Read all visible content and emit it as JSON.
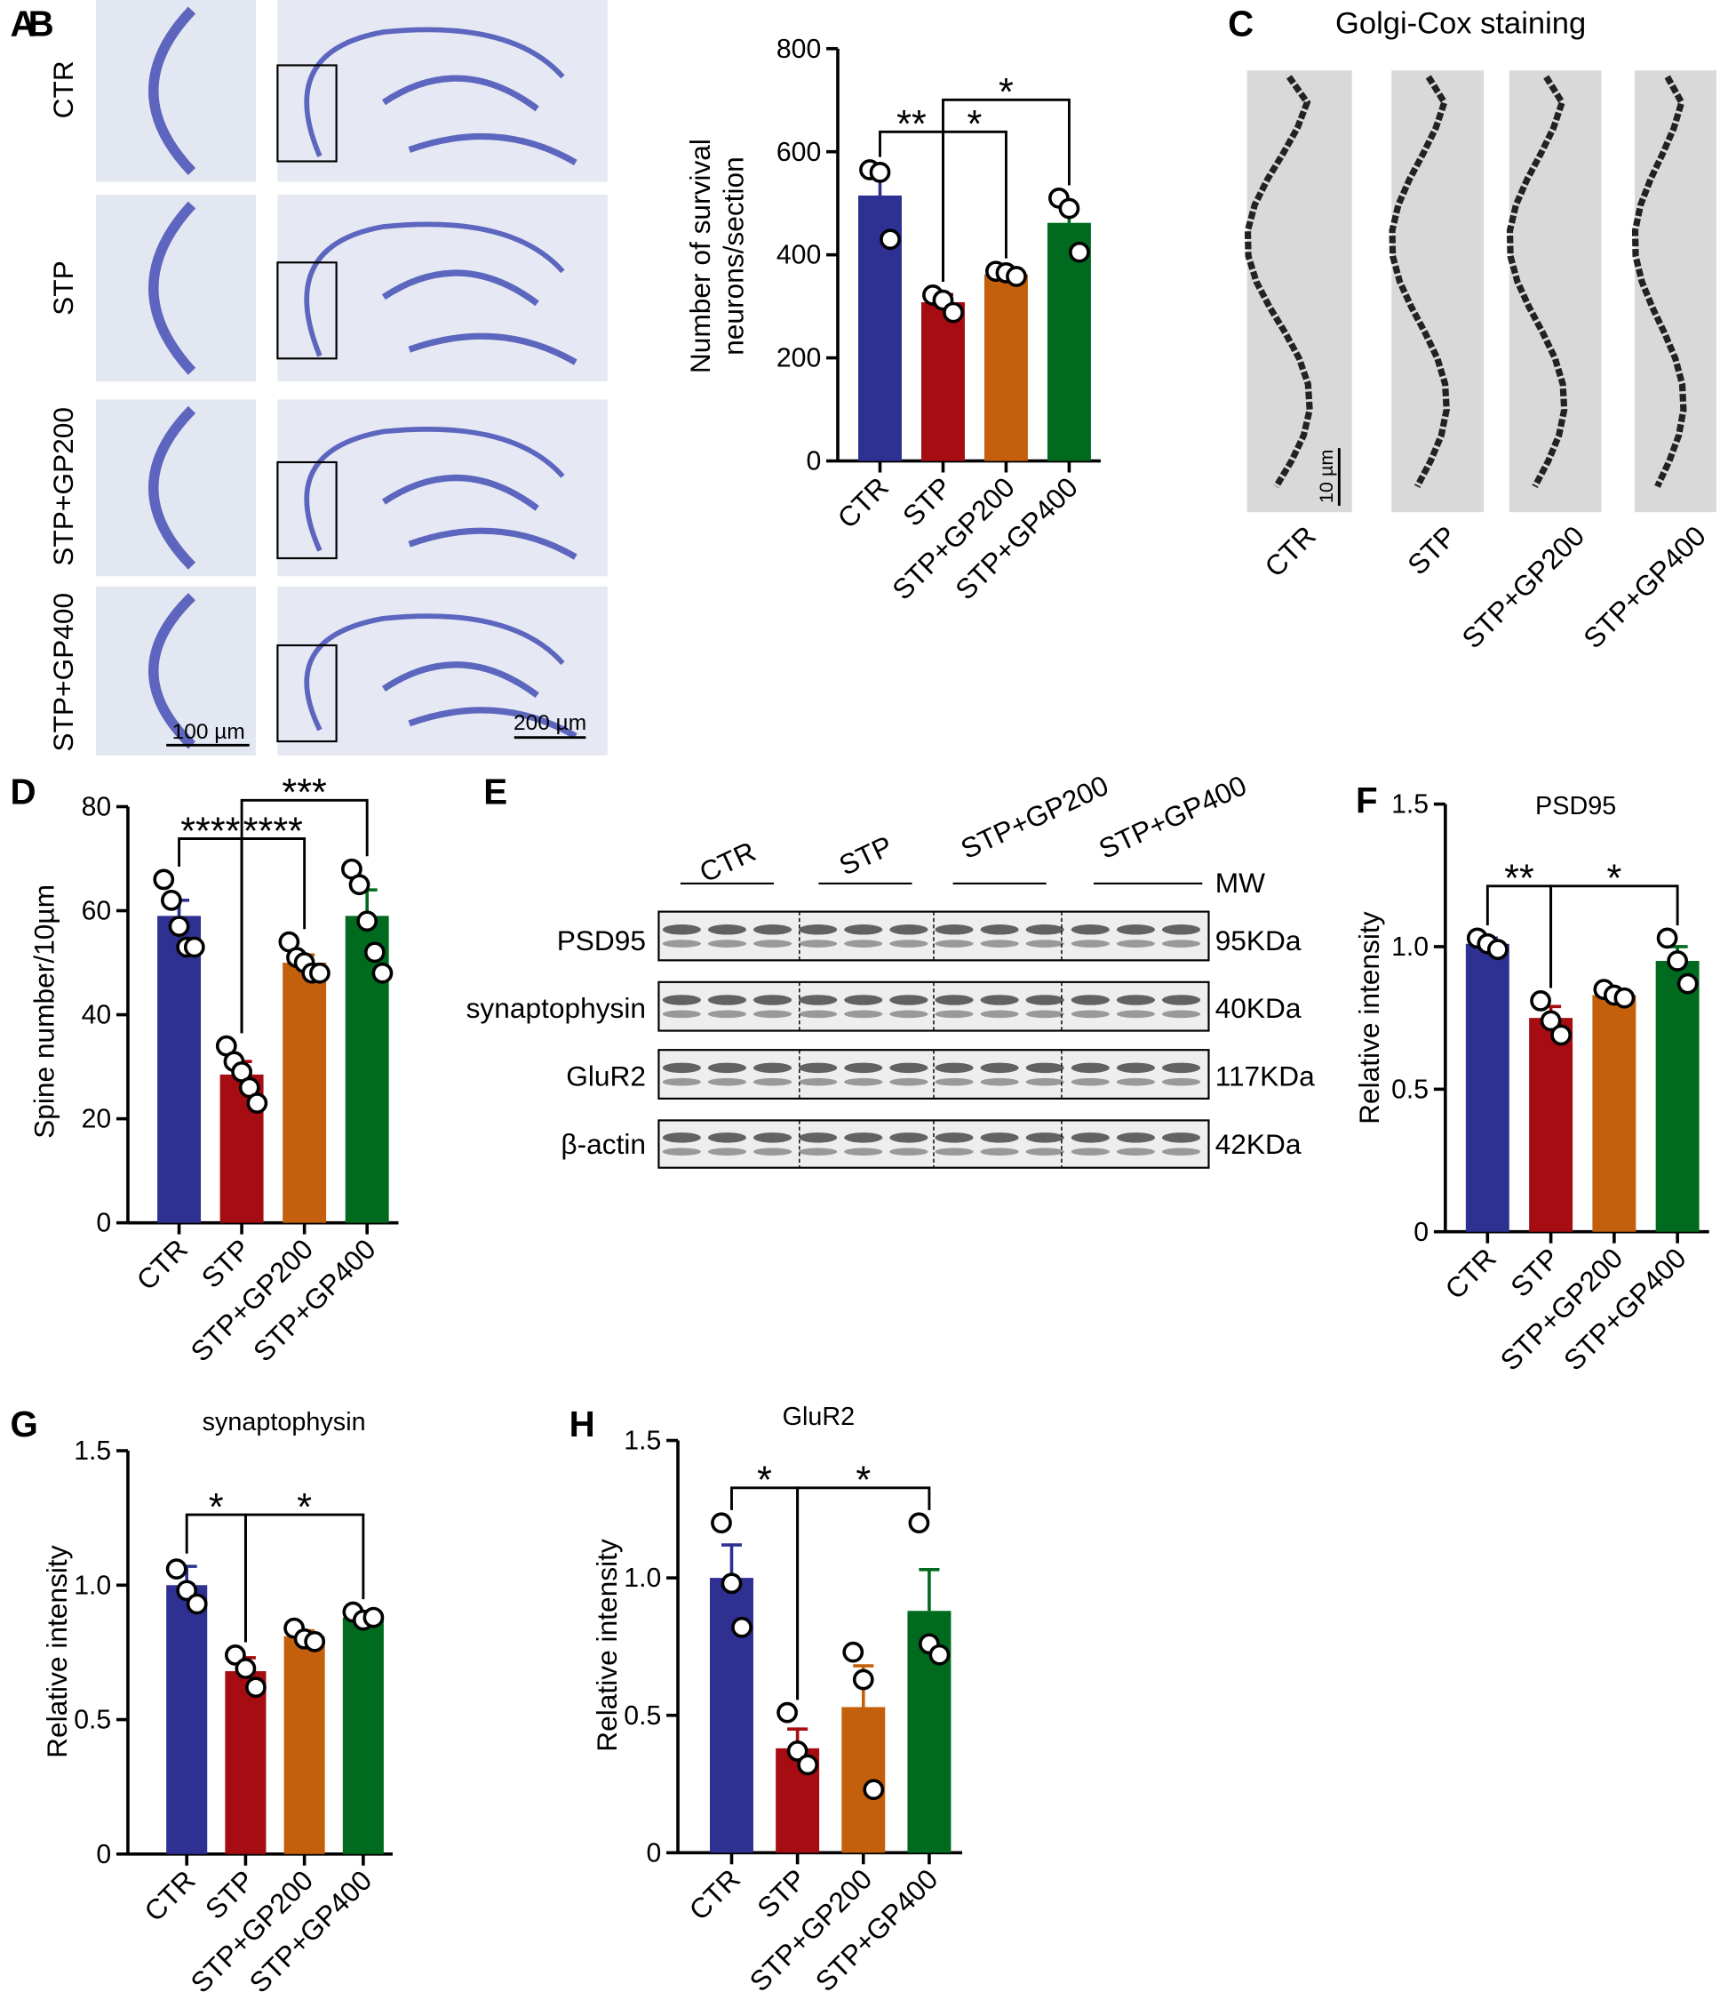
{
  "panel_a": {
    "label": "A",
    "rows": [
      "CTR",
      "STP",
      "STP+GP200",
      "STP+GP400"
    ],
    "scale_bars": [
      "100 µm",
      "200 µm"
    ]
  },
  "panel_c": {
    "label": "C",
    "title": "Golgi-Cox staining",
    "groups": [
      "CTR",
      "STP",
      "STP+GP200",
      "STP+GP400"
    ],
    "scale_bar": "10 µm"
  },
  "panel_e": {
    "label": "E",
    "groups": [
      "CTR",
      "STP",
      "STP+GP200",
      "STP+GP400"
    ],
    "mw_label": "MW",
    "rows": [
      {
        "label": "PSD95",
        "mw": "95KDa"
      },
      {
        "label": "synaptophysin",
        "mw": "40KDa"
      },
      {
        "label": "GluR2",
        "mw": "117KDa"
      },
      {
        "label": "β-actin",
        "mw": "42KDa"
      }
    ]
  },
  "chart_data": [
    {
      "type": "bar",
      "label": "B",
      "ylabel": [
        "Number of survival",
        "neurons/section"
      ],
      "categories": [
        "CTR",
        "STP",
        "STP+GP200",
        "STP+GP400"
      ],
      "colors": [
        "#2e3192",
        "#a50d12",
        "#c4600c",
        "#006b1f"
      ],
      "values": [
        515,
        308,
        362,
        462
      ],
      "errors": [
        45,
        15,
        5,
        30
      ],
      "points": [
        [
          565,
          560,
          430
        ],
        [
          322,
          312,
          288
        ],
        [
          368,
          365,
          358
        ],
        [
          510,
          490,
          405
        ]
      ],
      "ylim": [
        0,
        800
      ],
      "yticks": [
        0,
        200,
        400,
        600,
        800
      ],
      "significance": [
        {
          "text": "**",
          "between": [
            "CTR",
            "STP"
          ]
        },
        {
          "text": "*",
          "between": [
            "STP",
            "STP+GP200"
          ]
        },
        {
          "text": "*",
          "between": [
            "STP",
            "STP+GP400"
          ]
        }
      ]
    },
    {
      "type": "bar",
      "label": "D",
      "ylabel": "Spine number/10µm",
      "categories": [
        "CTR",
        "STP",
        "STP+GP200",
        "STP+GP400"
      ],
      "colors": [
        "#2e3192",
        "#a50d12",
        "#c4600c",
        "#006b1f"
      ],
      "values": [
        59,
        28.5,
        50,
        59
      ],
      "errors": [
        3,
        2.5,
        1.5,
        5
      ],
      "points": [
        [
          66,
          62,
          57,
          53,
          53
        ],
        [
          34,
          31,
          29,
          26,
          23
        ],
        [
          54,
          51,
          50,
          48,
          48
        ],
        [
          68,
          65,
          58,
          52,
          48
        ]
      ],
      "ylim": [
        0,
        80
      ],
      "yticks": [
        0,
        20,
        40,
        60,
        80
      ],
      "significance": [
        {
          "text": "****",
          "between": [
            "CTR",
            "STP"
          ]
        },
        {
          "text": "****",
          "between": [
            "STP",
            "STP+GP200"
          ]
        },
        {
          "text": "***",
          "between": [
            "STP",
            "STP+GP400"
          ]
        }
      ]
    },
    {
      "type": "bar",
      "label": "F",
      "title": "PSD95",
      "ylabel": "Relative intensity",
      "categories": [
        "CTR",
        "STP",
        "STP+GP200",
        "STP+GP400"
      ],
      "colors": [
        "#2e3192",
        "#a50d12",
        "#c4600c",
        "#006b1f"
      ],
      "values": [
        1.01,
        0.75,
        0.83,
        0.95
      ],
      "errors": [
        0.02,
        0.04,
        0.01,
        0.05
      ],
      "points": [
        [
          1.03,
          1.01,
          0.99
        ],
        [
          0.81,
          0.74,
          0.69
        ],
        [
          0.85,
          0.83,
          0.82
        ],
        [
          1.03,
          0.95,
          0.87
        ]
      ],
      "ylim": [
        0,
        1.5
      ],
      "yticks": [
        0,
        0.5,
        {
          "value": 1,
          "label": "1.0"
        },
        1.5
      ],
      "significance": [
        {
          "text": "**",
          "between": [
            "CTR",
            "STP"
          ]
        },
        {
          "text": "*",
          "between": [
            "STP",
            "STP+GP400"
          ]
        }
      ]
    },
    {
      "type": "bar",
      "label": "G",
      "title": "synaptophysin",
      "ylabel": "Relative intensity",
      "categories": [
        "CTR",
        "STP",
        "STP+GP200",
        "STP+GP400"
      ],
      "colors": [
        "#2e3192",
        "#a50d12",
        "#c4600c",
        "#006b1f"
      ],
      "values": [
        1.0,
        0.68,
        0.81,
        0.88
      ],
      "errors": [
        0.07,
        0.05,
        0.02,
        0.02
      ],
      "points": [
        [
          1.06,
          0.98,
          0.93
        ],
        [
          0.74,
          0.69,
          0.62
        ],
        [
          0.84,
          0.8,
          0.79
        ],
        [
          0.9,
          0.87,
          0.88
        ]
      ],
      "ylim": [
        0,
        1.5
      ],
      "yticks": [
        0,
        0.5,
        {
          "value": 1,
          "label": "1.0"
        },
        1.5
      ],
      "significance": [
        {
          "text": "*",
          "between": [
            "CTR",
            "STP"
          ]
        },
        {
          "text": "*",
          "between": [
            "STP",
            "STP+GP400"
          ]
        }
      ]
    },
    {
      "type": "bar",
      "label": "H",
      "title": "GluR2",
      "ylabel": "Relative intensity",
      "categories": [
        "CTR",
        "STP",
        "STP+GP200",
        "STP+GP400"
      ],
      "colors": [
        "#2e3192",
        "#a50d12",
        "#c4600c",
        "#006b1f"
      ],
      "values": [
        1.0,
        0.38,
        0.53,
        0.88
      ],
      "errors": [
        0.12,
        0.07,
        0.15,
        0.15
      ],
      "points": [
        [
          1.2,
          0.98,
          0.82
        ],
        [
          0.51,
          0.37,
          0.32
        ],
        [
          0.73,
          0.63,
          0.23
        ],
        [
          1.2,
          0.76,
          0.72
        ]
      ],
      "ylim": [
        0,
        1.5
      ],
      "yticks": [
        0,
        0.5,
        {
          "value": 1,
          "label": "1.0"
        },
        1.5
      ],
      "significance": [
        {
          "text": "*",
          "between": [
            "CTR",
            "STP"
          ]
        },
        {
          "text": "*",
          "between": [
            "STP",
            "STP+GP400"
          ]
        }
      ]
    }
  ]
}
